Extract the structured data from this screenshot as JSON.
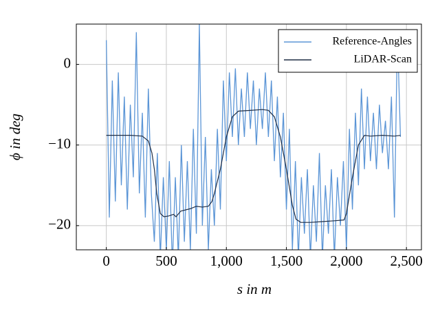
{
  "chart_data": {
    "type": "line",
    "xlabel": "s in m",
    "ylabel": "ϕ in deg",
    "xlim": [
      -250,
      2625
    ],
    "ylim": [
      -23,
      5
    ],
    "xticks": [
      0,
      500,
      {
        "value": 1000,
        "label": "1,000"
      },
      {
        "value": 1500,
        "label": "1,500"
      },
      {
        "value": 2000,
        "label": "2,000"
      },
      {
        "value": 2500,
        "label": "2,500"
      }
    ],
    "yticks": [
      {
        "value": -20,
        "label": "−20"
      },
      {
        "value": -10,
        "label": "−10"
      },
      0
    ],
    "grid": true,
    "legend": "upper right",
    "series": [
      {
        "name": "Reference-Angles",
        "color": "#5b95d6",
        "x": [
          0,
          25,
          50,
          75,
          100,
          125,
          150,
          175,
          200,
          225,
          250,
          275,
          300,
          325,
          350,
          375,
          400,
          425,
          450,
          475,
          500,
          525,
          550,
          575,
          600,
          625,
          650,
          675,
          700,
          725,
          750,
          775,
          800,
          825,
          850,
          875,
          900,
          925,
          950,
          975,
          1000,
          1025,
          1050,
          1075,
          1100,
          1125,
          1150,
          1175,
          1200,
          1225,
          1250,
          1275,
          1300,
          1325,
          1350,
          1375,
          1400,
          1425,
          1450,
          1475,
          1500,
          1525,
          1550,
          1575,
          1600,
          1625,
          1650,
          1675,
          1700,
          1725,
          1750,
          1775,
          1800,
          1825,
          1850,
          1875,
          1900,
          1925,
          1950,
          1975,
          2000,
          2025,
          2050,
          2075,
          2100,
          2125,
          2150,
          2175,
          2200,
          2225,
          2250,
          2275,
          2300,
          2325,
          2350,
          2375,
          2400,
          2425,
          2450
        ],
        "values": [
          3,
          -19,
          -2,
          -17,
          -1,
          -15,
          -4,
          -18,
          -5,
          -14,
          4,
          -16,
          -6,
          -19,
          -3,
          -16,
          -22,
          -11,
          -24,
          -14,
          -23,
          -12,
          -25,
          -14,
          -24,
          -10,
          -22,
          -12,
          -23,
          -8,
          -21,
          5,
          -20,
          -9,
          -23,
          -13,
          -20,
          -8,
          -18,
          -2,
          -12,
          -1,
          -9,
          -0.5,
          -10,
          -3,
          -9,
          -1,
          -8,
          -2,
          -10,
          -3,
          -8,
          -1,
          -9,
          -2,
          -12,
          -4,
          -14,
          -6,
          -18,
          -8,
          -23,
          -12,
          -24,
          -14,
          -21,
          -13,
          -24,
          -15,
          -22,
          -11,
          -24,
          -15,
          -21,
          -13,
          -24,
          -14,
          -20,
          -12,
          -23,
          -8,
          -18,
          -6,
          -15,
          -3,
          -13,
          -4,
          -12,
          -6,
          -13,
          -5,
          -11,
          -7,
          -13,
          -4,
          -19,
          4,
          -9
        ]
      },
      {
        "name": "LiDAR-Scan",
        "color": "#1f2d44",
        "x": [
          0,
          100,
          200,
          300,
          350,
          380,
          400,
          420,
          450,
          480,
          520,
          560,
          580,
          620,
          700,
          750,
          800,
          850,
          880,
          900,
          950,
          1000,
          1050,
          1100,
          1200,
          1300,
          1350,
          1400,
          1450,
          1500,
          1550,
          1580,
          1620,
          1700,
          1800,
          1900,
          1980,
          2000,
          2050,
          2100,
          2150,
          2200,
          2300,
          2400,
          2450
        ],
        "values": [
          -8.8,
          -8.8,
          -8.8,
          -8.9,
          -9.5,
          -11,
          -13,
          -16,
          -18.5,
          -18.9,
          -18.8,
          -18.6,
          -18.9,
          -18.2,
          -17.9,
          -17.6,
          -17.7,
          -17.6,
          -17,
          -16,
          -13,
          -9,
          -6.5,
          -5.8,
          -5.7,
          -5.6,
          -5.7,
          -6.5,
          -9,
          -13,
          -17.5,
          -19.2,
          -19.6,
          -19.6,
          -19.5,
          -19.4,
          -19.3,
          -18.5,
          -14,
          -10,
          -8.8,
          -8.9,
          -8.8,
          -8.9,
          -8.8
        ]
      }
    ]
  }
}
